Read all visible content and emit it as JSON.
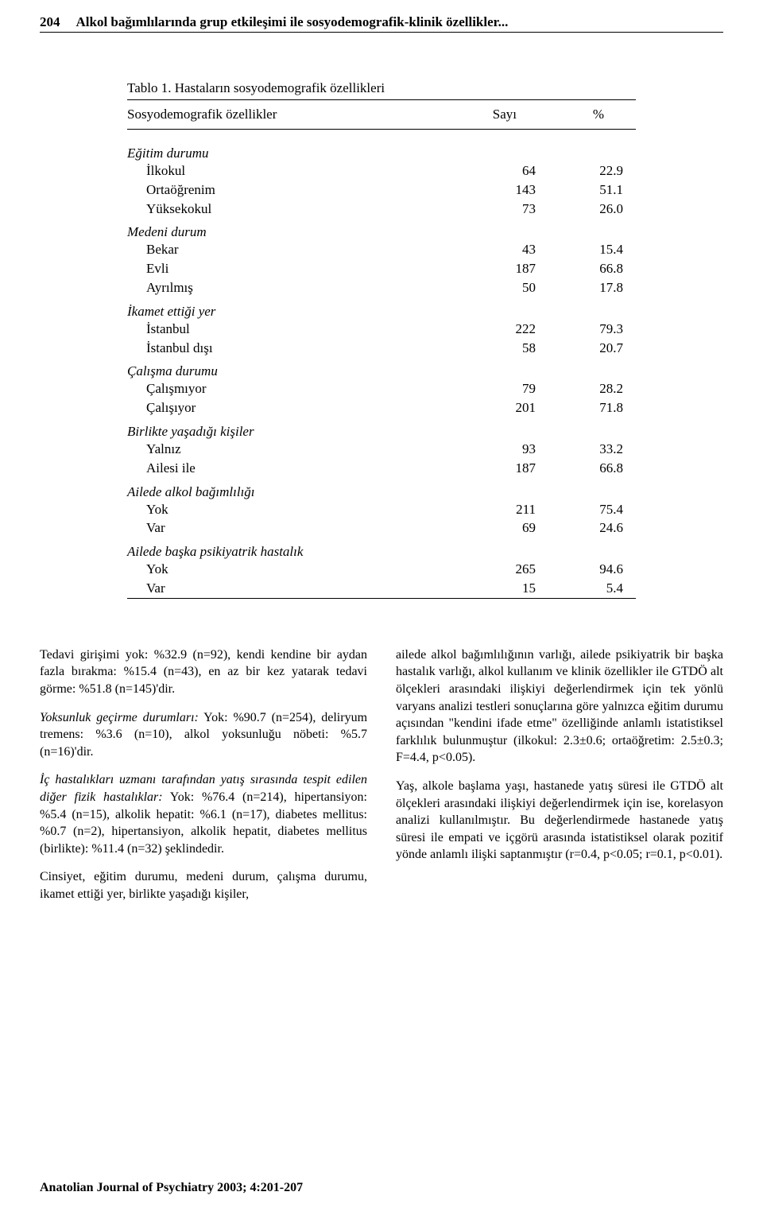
{
  "header": {
    "page_number": "204",
    "running_title": "Alkol bağımlılarında grup etkileşimi ile sosyodemografik-klinik özellikler..."
  },
  "table": {
    "title": "Tablo 1. Hastaların sosyodemografik özellikleri",
    "columns": {
      "label": "Sosyodemografik özellikler",
      "count": "Sayı",
      "percent": "%"
    },
    "groups": [
      {
        "title": "Eğitim durumu",
        "rows": [
          {
            "label": "İlkokul",
            "count": "64",
            "percent": "22.9"
          },
          {
            "label": "Ortaöğrenim",
            "count": "143",
            "percent": "51.1"
          },
          {
            "label": "Yüksekokul",
            "count": "73",
            "percent": "26.0"
          }
        ]
      },
      {
        "title": "Medeni durum",
        "rows": [
          {
            "label": "Bekar",
            "count": "43",
            "percent": "15.4"
          },
          {
            "label": "Evli",
            "count": "187",
            "percent": "66.8"
          },
          {
            "label": "Ayrılmış",
            "count": "50",
            "percent": "17.8"
          }
        ]
      },
      {
        "title": "İkamet ettiği yer",
        "rows": [
          {
            "label": "İstanbul",
            "count": "222",
            "percent": "79.3"
          },
          {
            "label": "İstanbul dışı",
            "count": "58",
            "percent": "20.7"
          }
        ]
      },
      {
        "title": "Çalışma durumu",
        "rows": [
          {
            "label": "Çalışmıyor",
            "count": "79",
            "percent": "28.2"
          },
          {
            "label": "Çalışıyor",
            "count": "201",
            "percent": "71.8"
          }
        ]
      },
      {
        "title": "Birlikte yaşadığı kişiler",
        "rows": [
          {
            "label": "Yalnız",
            "count": "93",
            "percent": "33.2"
          },
          {
            "label": "Ailesi ile",
            "count": "187",
            "percent": "66.8"
          }
        ]
      },
      {
        "title": "Ailede alkol bağımlılığı",
        "rows": [
          {
            "label": "Yok",
            "count": "211",
            "percent": "75.4"
          },
          {
            "label": "Var",
            "count": "69",
            "percent": "24.6"
          }
        ]
      },
      {
        "title": "Ailede başka psikiyatrik hastalık",
        "rows": [
          {
            "label": "Yok",
            "count": "265",
            "percent": "94.6"
          },
          {
            "label": "Var",
            "count": "15",
            "percent": "5.4"
          }
        ]
      }
    ]
  },
  "body": {
    "left": {
      "p1": "Tedavi girişimi yok: %32.9 (n=92), kendi kendine bir aydan fazla bırakma: %15.4 (n=43), en az bir kez yatarak tedavi görme: %51.8 (n=145)'dir.",
      "p2_lead": "Yoksunluk geçirme durumları:",
      "p2_rest": " Yok: %90.7 (n=254), deliryum tremens: %3.6 (n=10), alkol yoksunluğu nöbeti: %5.7 (n=16)'dir.",
      "p3_lead": "İç hastalıkları uzmanı tarafından yatış sırasında tespit edilen diğer fizik hastalıklar:",
      "p3_rest": " Yok: %76.4 (n=214), hipertansiyon: %5.4 (n=15), alkolik hepatit: %6.1 (n=17), diabetes mellitus: %0.7 (n=2), hipertansiyon, alkolik hepatit, diabetes mellitus (birlikte): %11.4 (n=32) şeklindedir.",
      "p4": "Cinsiyet, eğitim durumu, medeni durum, çalışma durumu, ikamet ettiği yer, birlikte yaşadığı kişiler,"
    },
    "right": {
      "p1": "ailede alkol bağımlılığının varlığı, ailede psikiyatrik bir başka hastalık varlığı, alkol kullanım ve klinik özellikler ile GTDÖ alt ölçekleri arasındaki ilişkiyi değerlendirmek için tek yönlü varyans analizi testleri sonuçlarına göre yalnızca eğitim durumu açısından \"kendini ifade etme\" özelliğinde anlamlı istatistiksel farklılık bulunmuştur (ilkokul: 2.3±0.6; ortaöğretim: 2.5±0.3; F=4.4, p<0.05).",
      "p2": "Yaş, alkole başlama yaşı, hastanede yatış süresi ile GTDÖ alt ölçekleri arasındaki ilişkiyi değerlendirmek için ise, korelasyon analizi kullanılmıştır. Bu değerlendirmede hastanede yatış süresi ile empati ve içgörü arasında istatistiksel olarak pozitif yönde anlamlı ilişki saptanmıştır (r=0.4, p<0.05; r=0.1, p<0.01)."
    }
  },
  "footer": {
    "citation": "Anatolian Journal of Psychiatry 2003; 4:201-207"
  }
}
